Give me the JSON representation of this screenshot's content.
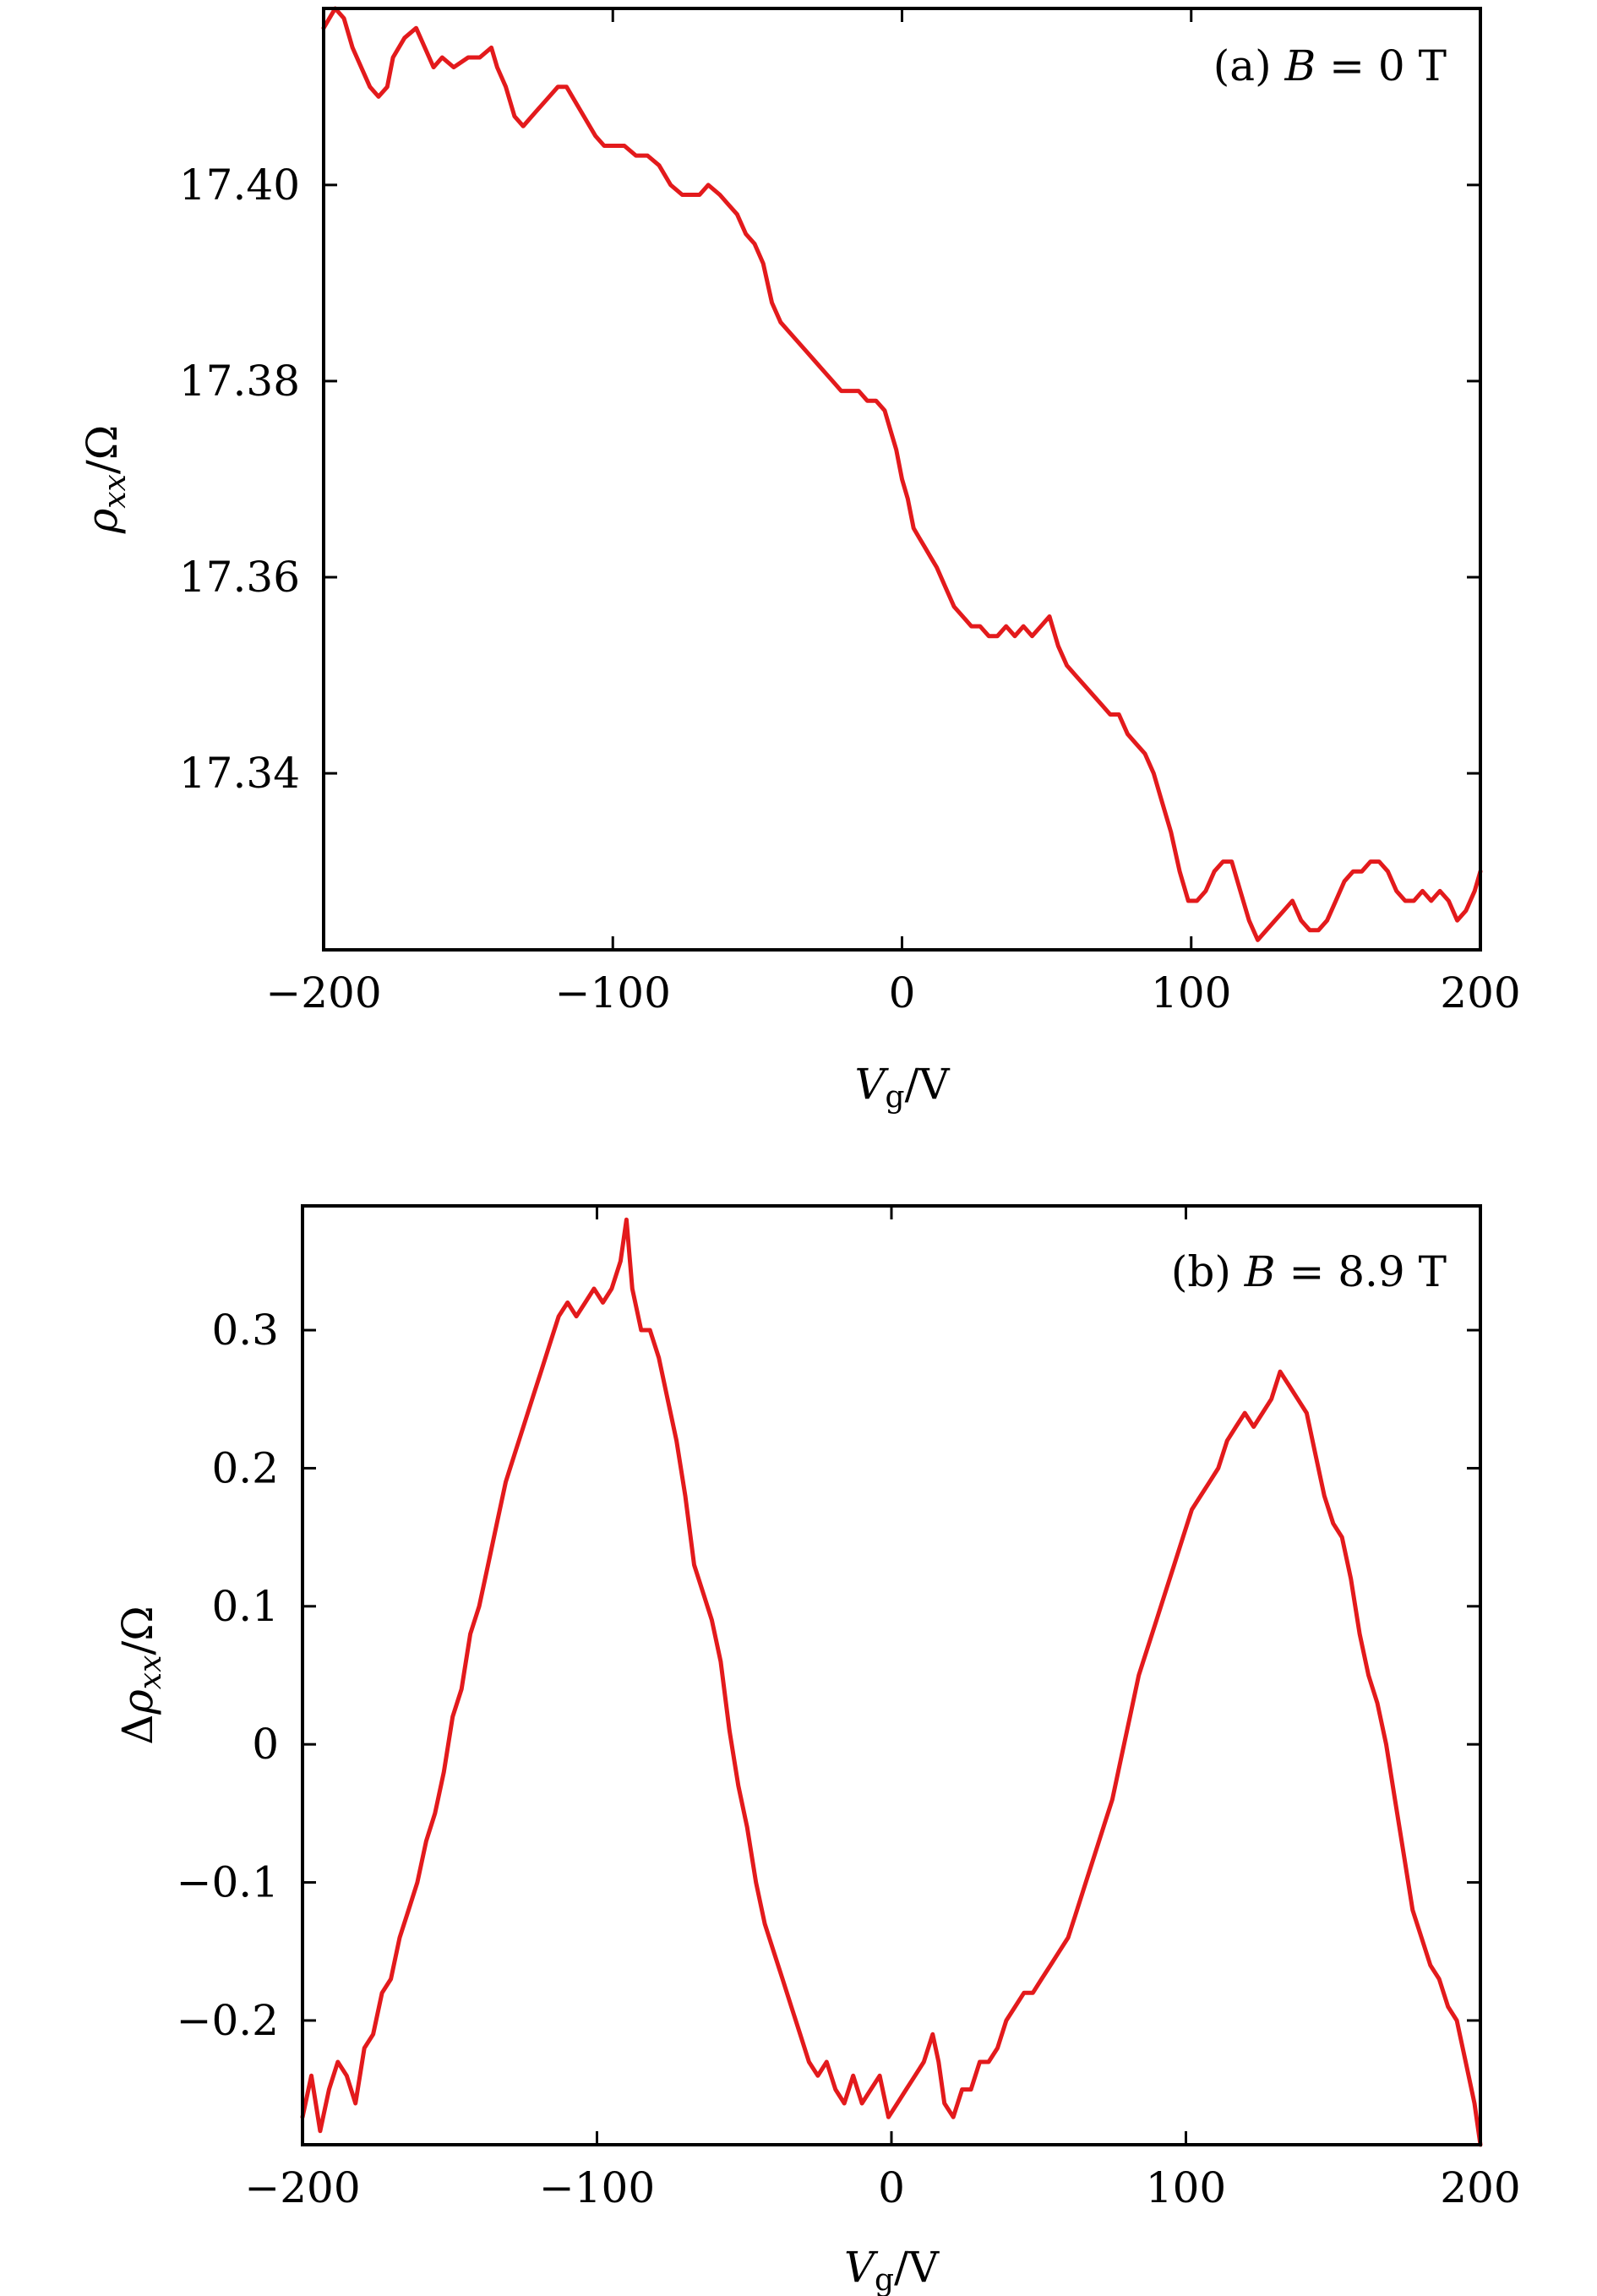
{
  "chart_data": [
    {
      "type": "line",
      "panel_label": "(a)",
      "annotation": {
        "prefix": "(a) ",
        "var": "B",
        "rest": " = 0 T"
      },
      "xlabel": {
        "var": "V",
        "sub": "g",
        "unit": "/V"
      },
      "ylabel": {
        "var": "ρ",
        "sub": "xx",
        "unit": "/Ω"
      },
      "xlim": [
        -200,
        200
      ],
      "ylim": [
        17.322,
        17.418
      ],
      "xticks": [
        -200,
        -100,
        0,
        100,
        200
      ],
      "xtick_labels": [
        "−200",
        "−100",
        "0",
        "100",
        "200"
      ],
      "yticks": [
        17.34,
        17.36,
        17.38,
        17.4
      ],
      "ytick_labels": [
        "17.34",
        "17.36",
        "17.38",
        "17.40"
      ],
      "grid": false,
      "color": "#e31a1c",
      "series": [
        {
          "x": [
            -200,
            -196,
            -193,
            -190,
            -187,
            -184,
            -181,
            -178,
            -176,
            -172,
            -168,
            -165,
            -162,
            -159,
            -155,
            -150,
            -146,
            -142,
            -140,
            -137,
            -134,
            -131,
            -128,
            -125,
            -122,
            -119,
            -116,
            -114,
            -110,
            -106,
            -103,
            -100,
            -96,
            -92,
            -88,
            -84,
            -80,
            -76,
            -73,
            -70,
            -67,
            -63,
            -60,
            -57,
            -54,
            -51,
            -48,
            -45,
            -42,
            -39,
            -36,
            -33,
            -30,
            -27,
            -24,
            -21,
            -18,
            -15,
            -12,
            -9,
            -6,
            -4,
            -2,
            0,
            2,
            4,
            6,
            8,
            10,
            12,
            15,
            18,
            21,
            24,
            27,
            30,
            33,
            36,
            39,
            42,
            45,
            48,
            51,
            54,
            57,
            60,
            63,
            66,
            69,
            72,
            75,
            78,
            81,
            84,
            87,
            90,
            93,
            96,
            99,
            102,
            105,
            108,
            111,
            114,
            117,
            120,
            123,
            126,
            129,
            132,
            135,
            138,
            141,
            144,
            147,
            150,
            153,
            156,
            159,
            162,
            165,
            168,
            171,
            174,
            177,
            180,
            183,
            186,
            189,
            192,
            195,
            198,
            200
          ],
          "values": [
            17.416,
            17.418,
            17.417,
            17.414,
            17.412,
            17.41,
            17.409,
            17.41,
            17.413,
            17.415,
            17.416,
            17.414,
            17.412,
            17.413,
            17.412,
            17.413,
            17.413,
            17.414,
            17.412,
            17.41,
            17.407,
            17.406,
            17.407,
            17.408,
            17.409,
            17.41,
            17.41,
            17.409,
            17.407,
            17.405,
            17.404,
            17.404,
            17.404,
            17.403,
            17.403,
            17.402,
            17.4,
            17.399,
            17.399,
            17.399,
            17.4,
            17.399,
            17.398,
            17.397,
            17.395,
            17.394,
            17.392,
            17.388,
            17.386,
            17.385,
            17.384,
            17.383,
            17.382,
            17.381,
            17.38,
            17.379,
            17.379,
            17.379,
            17.378,
            17.378,
            17.377,
            17.375,
            17.373,
            17.37,
            17.368,
            17.365,
            17.364,
            17.363,
            17.362,
            17.361,
            17.359,
            17.357,
            17.356,
            17.355,
            17.355,
            17.354,
            17.354,
            17.355,
            17.354,
            17.355,
            17.354,
            17.355,
            17.356,
            17.353,
            17.351,
            17.35,
            17.349,
            17.348,
            17.347,
            17.346,
            17.346,
            17.344,
            17.343,
            17.342,
            17.34,
            17.337,
            17.334,
            17.33,
            17.327,
            17.327,
            17.328,
            17.33,
            17.331,
            17.331,
            17.328,
            17.325,
            17.323,
            17.324,
            17.325,
            17.326,
            17.327,
            17.325,
            17.324,
            17.324,
            17.325,
            17.327,
            17.329,
            17.33,
            17.33,
            17.331,
            17.331,
            17.33,
            17.328,
            17.327,
            17.327,
            17.328,
            17.327,
            17.328,
            17.327,
            17.325,
            17.326,
            17.328,
            17.33
          ]
        }
      ]
    },
    {
      "type": "line",
      "panel_label": "(b)",
      "annotation": {
        "prefix": "(b) ",
        "var": "B",
        "rest": " = 8.9 T"
      },
      "xlabel": {
        "var": "V",
        "sub": "g",
        "unit": "/V"
      },
      "ylabel": {
        "pre": "Δ",
        "var": "ρ",
        "sub": "xx",
        "unit": "/Ω"
      },
      "xlim": [
        -200,
        200
      ],
      "ylim": [
        -0.29,
        0.39
      ],
      "xticks": [
        -200,
        -100,
        0,
        100,
        200
      ],
      "xtick_labels": [
        "−200",
        "−100",
        "0",
        "100",
        "200"
      ],
      "yticks": [
        -0.2,
        -0.1,
        0,
        0.1,
        0.2,
        0.3
      ],
      "ytick_labels": [
        "−0.2",
        "−0.1",
        "0",
        "0.1",
        "0.2",
        "0.3"
      ],
      "grid": false,
      "color": "#e31a1c",
      "series": [
        {
          "x": [
            -200,
            -197,
            -194,
            -191,
            -188,
            -185,
            -182,
            -179,
            -176,
            -173,
            -170,
            -167,
            -164,
            -161,
            -158,
            -155,
            -152,
            -149,
            -146,
            -143,
            -140,
            -137,
            -134,
            -131,
            -128,
            -125,
            -122,
            -119,
            -116,
            -113,
            -110,
            -107,
            -104,
            -101,
            -98,
            -95,
            -92,
            -90,
            -88,
            -85,
            -82,
            -79,
            -76,
            -73,
            -70,
            -67,
            -64,
            -61,
            -58,
            -55,
            -52,
            -49,
            -46,
            -43,
            -40,
            -37,
            -34,
            -31,
            -28,
            -25,
            -22,
            -19,
            -16,
            -13,
            -10,
            -7,
            -4,
            -1,
            2,
            5,
            8,
            11,
            14,
            16,
            18,
            21,
            24,
            27,
            30,
            33,
            36,
            39,
            42,
            45,
            48,
            51,
            54,
            57,
            60,
            63,
            66,
            69,
            72,
            75,
            78,
            81,
            84,
            87,
            90,
            93,
            96,
            99,
            102,
            105,
            108,
            111,
            114,
            117,
            120,
            123,
            126,
            129,
            132,
            135,
            138,
            141,
            144,
            147,
            150,
            153,
            156,
            159,
            162,
            165,
            168,
            171,
            174,
            177,
            180,
            183,
            186,
            189,
            192,
            195,
            198,
            200
          ],
          "values": [
            -0.27,
            -0.24,
            -0.28,
            -0.25,
            -0.23,
            -0.24,
            -0.26,
            -0.22,
            -0.21,
            -0.18,
            -0.17,
            -0.14,
            -0.12,
            -0.1,
            -0.07,
            -0.05,
            -0.02,
            0.02,
            0.04,
            0.08,
            0.1,
            0.13,
            0.16,
            0.19,
            0.21,
            0.23,
            0.25,
            0.27,
            0.29,
            0.31,
            0.32,
            0.31,
            0.32,
            0.33,
            0.32,
            0.33,
            0.35,
            0.38,
            0.33,
            0.3,
            0.3,
            0.28,
            0.25,
            0.22,
            0.18,
            0.13,
            0.11,
            0.09,
            0.06,
            0.01,
            -0.03,
            -0.06,
            -0.1,
            -0.13,
            -0.15,
            -0.17,
            -0.19,
            -0.21,
            -0.23,
            -0.24,
            -0.23,
            -0.25,
            -0.26,
            -0.24,
            -0.26,
            -0.25,
            -0.24,
            -0.27,
            -0.26,
            -0.25,
            -0.24,
            -0.23,
            -0.21,
            -0.23,
            -0.26,
            -0.27,
            -0.25,
            -0.25,
            -0.23,
            -0.23,
            -0.22,
            -0.2,
            -0.19,
            -0.18,
            -0.18,
            -0.17,
            -0.16,
            -0.15,
            -0.14,
            -0.12,
            -0.1,
            -0.08,
            -0.06,
            -0.04,
            -0.01,
            0.02,
            0.05,
            0.07,
            0.09,
            0.11,
            0.13,
            0.15,
            0.17,
            0.18,
            0.19,
            0.2,
            0.22,
            0.23,
            0.24,
            0.23,
            0.24,
            0.25,
            0.27,
            0.26,
            0.25,
            0.24,
            0.21,
            0.18,
            0.16,
            0.15,
            0.12,
            0.08,
            0.05,
            0.03,
            0.0,
            -0.04,
            -0.08,
            -0.12,
            -0.14,
            -0.16,
            -0.17,
            -0.19,
            -0.2,
            -0.23,
            -0.26,
            -0.29
          ]
        }
      ]
    }
  ]
}
